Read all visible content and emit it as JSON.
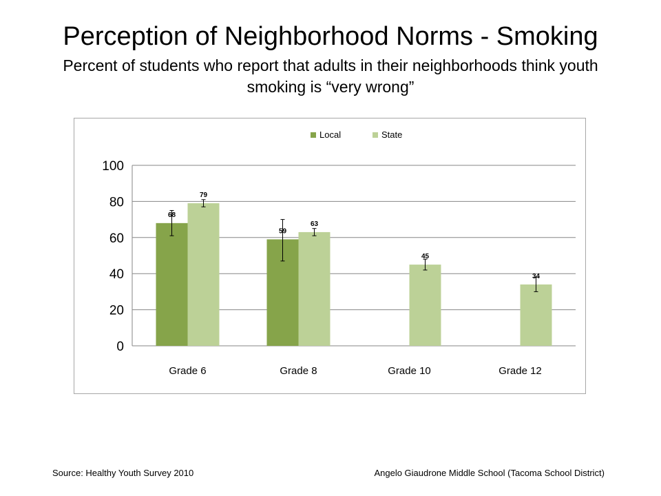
{
  "slide": {
    "title": "Perception of Neighborhood Norms - Smoking",
    "subtitle": "Percent of students who report that adults in their neighborhoods think youth smoking is “very wrong”",
    "source": "Source: Healthy Youth Survey 2010",
    "school": "Angelo Giaudrone Middle School (Tacoma School District)"
  },
  "chart_data": {
    "type": "bar",
    "title": "",
    "xlabel": "",
    "ylabel": "",
    "categories": [
      "Grade 6",
      "Grade 8",
      "Grade 10",
      "Grade 12"
    ],
    "series": [
      {
        "name": "Local",
        "color": "#86a44a",
        "values": [
          68,
          59,
          null,
          null
        ],
        "labels": [
          "68",
          "59",
          "",
          ""
        ],
        "error_low": [
          61,
          47,
          null,
          null
        ],
        "error_high": [
          75,
          70,
          null,
          null
        ]
      },
      {
        "name": "State",
        "color": "#bcd197",
        "values": [
          79,
          63,
          45,
          34
        ],
        "labels": [
          "79",
          "63",
          "45",
          "34"
        ],
        "error_low": [
          77,
          61,
          42,
          30
        ],
        "error_high": [
          81,
          65,
          48,
          38
        ]
      }
    ],
    "ylim": [
      0,
      100
    ],
    "yticks": [
      0,
      20,
      40,
      60,
      80,
      100
    ],
    "grid": true,
    "legend": "top-center"
  }
}
